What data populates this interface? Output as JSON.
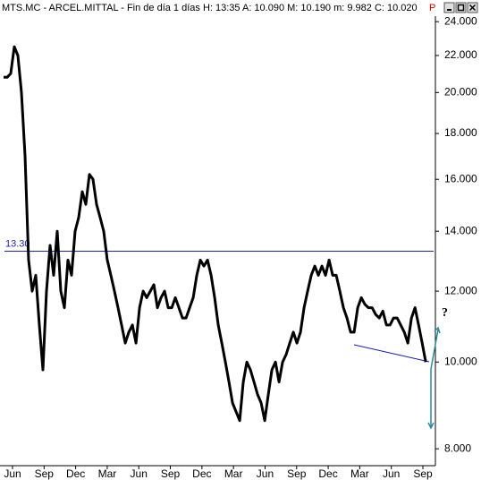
{
  "chart_data": {
    "type": "line",
    "title": "MTS.MC - ARCEL.MITTAL - Fin de día 1 días  H: 13:35  A: 10.090  M: 10.190  m: 9.982  C: 10.020",
    "flag": "P",
    "x": [
      -0.85,
      -0.51,
      -0.17,
      0.17,
      0.51,
      0.85,
      1.19,
      1.53,
      1.87,
      2.21,
      2.55,
      2.89,
      3.23,
      3.57,
      3.91,
      4.25,
      4.59,
      4.93,
      5.27,
      5.61,
      5.95,
      6.29,
      6.63,
      6.97,
      7.31,
      7.65,
      7.99,
      8.33,
      8.67,
      9.01,
      9.35,
      9.69,
      10.03,
      10.37,
      10.71,
      11.05,
      11.39,
      11.73,
      12.07,
      12.41,
      12.75,
      13.09,
      13.43,
      13.77,
      14.11,
      14.45,
      14.79,
      15.13,
      15.47,
      15.81,
      16.15,
      16.49,
      16.83,
      17.17,
      17.51,
      17.85,
      18.19,
      18.53,
      18.87,
      19.21,
      19.55,
      19.89,
      20.23,
      20.57,
      20.91,
      21.25,
      21.59,
      21.93,
      22.27,
      22.61,
      22.95,
      23.29,
      23.63,
      23.97,
      24.31,
      24.65,
      24.99,
      25.33,
      25.67,
      26.01,
      26.35,
      26.69,
      27.03,
      27.37,
      27.71,
      28.05,
      28.39,
      28.73,
      29.07,
      29.41,
      29.75,
      30.09,
      30.43,
      30.77,
      31.11,
      31.45,
      31.79,
      32.13,
      32.47,
      32.81,
      33.15,
      33.49,
      33.83,
      34.17,
      34.51,
      34.85,
      35.19,
      35.53,
      35.87,
      36.21,
      36.55,
      36.89,
      37.23,
      37.57,
      37.91,
      38.25,
      38.59,
      38.93,
      39.27
    ],
    "series": [
      {
        "name": "MTS.MC",
        "color": "#000000",
        "values": [
          20.8,
          20.8,
          21,
          22.5,
          22,
          20,
          17,
          13,
          12,
          12.5,
          11,
          9.8,
          12,
          13.5,
          12.5,
          14,
          12,
          11.5,
          13,
          12.5,
          14,
          14.5,
          15.5,
          15,
          16.2,
          16,
          15,
          14.5,
          14,
          13,
          12.5,
          12,
          11.5,
          11,
          10.5,
          10.8,
          11,
          10.5,
          11.5,
          12,
          11.8,
          12,
          12.2,
          11.5,
          11.8,
          12,
          11.5,
          11.5,
          11.8,
          11.5,
          11.2,
          11.2,
          11.5,
          11.8,
          12.5,
          13,
          12.8,
          13,
          12.5,
          11.8,
          11,
          10.5,
          10,
          9.5,
          9,
          8.8,
          8.6,
          9.5,
          10,
          9.8,
          9.5,
          9.2,
          9,
          8.6,
          9.2,
          9.8,
          10,
          9.5,
          10,
          10.2,
          10.5,
          10.8,
          10.5,
          10.8,
          11.5,
          12,
          12.5,
          12.8,
          12.5,
          12.8,
          12.5,
          13,
          12.5,
          12.5,
          12,
          11.5,
          11.2,
          10.8,
          10.8,
          11.5,
          11.8,
          11.6,
          11.5,
          11.5,
          11.3,
          11.2,
          11.4,
          11,
          11,
          11.2,
          11.2,
          11,
          10.8,
          10.5,
          11.2,
          11.5,
          11,
          10.5,
          10
        ]
      }
    ],
    "xlim": [
      -1.19,
      40.19
    ],
    "xticks": [
      {
        "value": 0,
        "label": "Jun"
      },
      {
        "value": 3,
        "label": "Sep"
      },
      {
        "value": 6,
        "label": "Dec"
      },
      {
        "value": 9,
        "label": "Mar"
      },
      {
        "value": 12,
        "label": "Jun"
      },
      {
        "value": 15,
        "label": "Sep"
      },
      {
        "value": 18,
        "label": "Dec"
      },
      {
        "value": 21,
        "label": "Mar"
      },
      {
        "value": 24,
        "label": "Jun"
      },
      {
        "value": 27,
        "label": "Sep"
      },
      {
        "value": 30,
        "label": "Dec"
      },
      {
        "value": 33,
        "label": "Mar"
      },
      {
        "value": 36,
        "label": "Jun"
      },
      {
        "value": 39,
        "label": "Sep"
      }
    ],
    "ylim": [
      7.66,
      24.4
    ],
    "yscale": "log",
    "yticks": [
      {
        "value": 8,
        "label": "8.000"
      },
      {
        "value": 10,
        "label": "10.000"
      },
      {
        "value": 12,
        "label": "12.000"
      },
      {
        "value": 14,
        "label": "14.000"
      },
      {
        "value": 16,
        "label": "16.000"
      },
      {
        "value": 18,
        "label": "18.000"
      },
      {
        "value": 20,
        "label": "20.000"
      },
      {
        "value": 22,
        "label": "22.000"
      },
      {
        "value": 24,
        "label": "24.000"
      }
    ],
    "hline": {
      "value": 13.3,
      "label": "13.30",
      "color": "#1f1fb0"
    },
    "annotation": "?"
  }
}
